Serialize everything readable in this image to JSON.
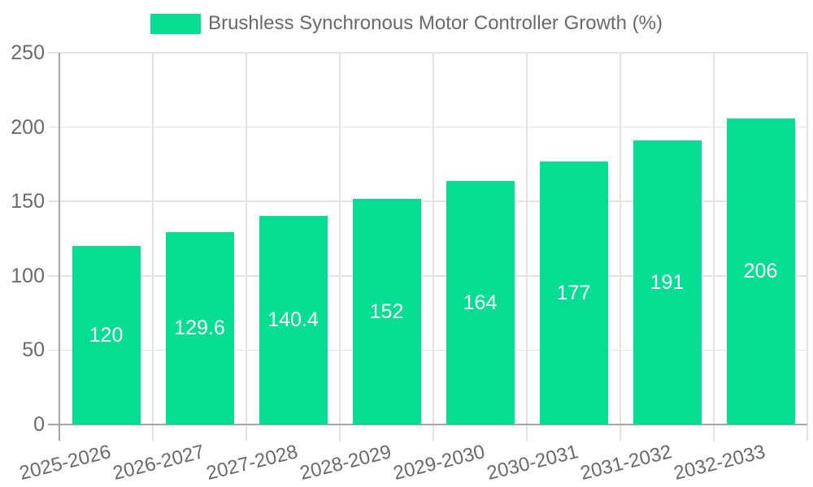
{
  "legend": {
    "label": "Brushless Synchronous Motor Controller Growth (%)"
  },
  "chart_data": {
    "type": "bar",
    "title": "Brushless Synchronous Motor Controller Growth (%)",
    "legend_position": "top",
    "categories": [
      "2025-2026",
      "2026-2027",
      "2027-2028",
      "2028-2029",
      "2029-2030",
      "2030-2031",
      "2031-2032",
      "2032-2033"
    ],
    "values": [
      120,
      129.6,
      140.4,
      152,
      164,
      177,
      191,
      206
    ],
    "value_labels": [
      "120",
      "129.6",
      "140.4",
      "152",
      "164",
      "177",
      "191",
      "206"
    ],
    "xlabel": "",
    "ylabel": "",
    "ylim": [
      0,
      250
    ],
    "yticks": [
      0,
      50,
      100,
      150,
      200,
      250
    ],
    "grid": true,
    "x_label_rotation_deg": -14,
    "colors": {
      "bar": "#05DD92",
      "grid": "#E3E3E3",
      "axis": "#A4A4A4",
      "tick_text": "#6A6A6A",
      "value_text": "#FFFFFF",
      "background": "#FFFFFF"
    }
  }
}
